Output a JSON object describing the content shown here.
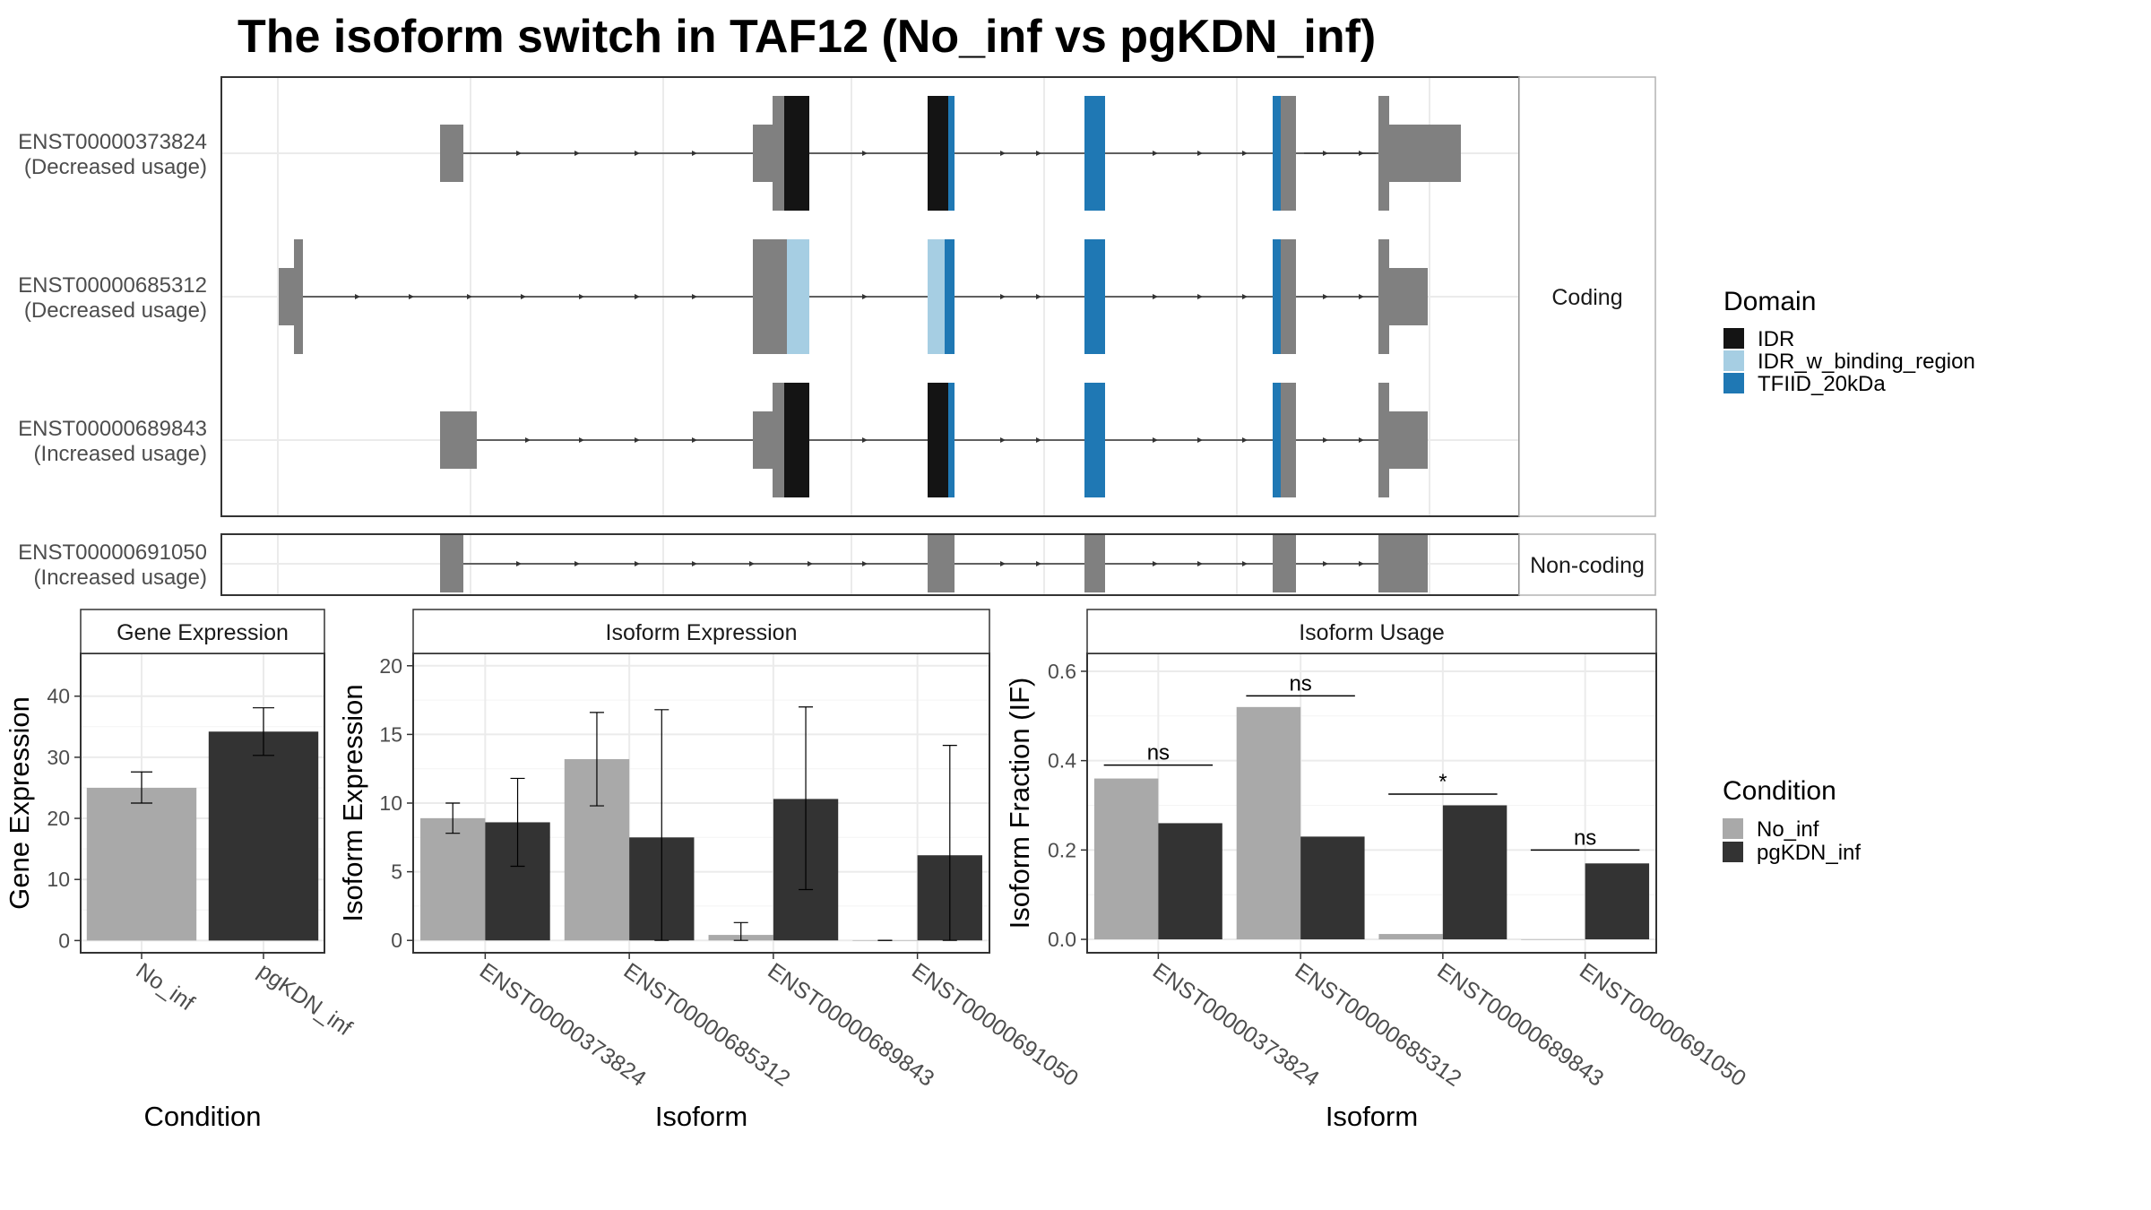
{
  "title": "The isoform switch in TAF12 (No_inf vs pgKDN_inf)",
  "colors": {
    "utr": "#808080",
    "IDR": "#141414",
    "IDR_w_binding_region": "#a6cee3",
    "TFIID_20kDa": "#1f78b4",
    "No_inf": "#a9a9a9",
    "pgKDN_inf": "#333333",
    "grid": "#ebebeb",
    "strip_bg": "#ffffff",
    "panel_border": "#333333"
  },
  "structure": {
    "facets": [
      "Coding",
      "Non-coding"
    ],
    "transcripts": [
      {
        "id": "ENST00000373824",
        "usage": "(Decreased usage)",
        "facet": "Coding"
      },
      {
        "id": "ENST00000685312",
        "usage": "(Decreased usage)",
        "facet": "Coding"
      },
      {
        "id": "ENST00000689843",
        "usage": "(Increased usage)",
        "facet": "Coding"
      },
      {
        "id": "ENST00000691050",
        "usage": "(Increased usage)",
        "facet": "Non-coding"
      }
    ],
    "legend_title": "Domain",
    "legend_items": [
      "IDR",
      "IDR_w_binding_region",
      "TFIID_20kDa"
    ]
  },
  "chart_data": [
    {
      "type": "bar",
      "strip": "Gene Expression",
      "xlabel": "Condition",
      "ylabel": "Gene Expression",
      "categories": [
        "No_inf",
        "pgKDN_inf"
      ],
      "values": [
        25.0,
        34.2
      ],
      "errors": [
        [
          22.5,
          27.6
        ],
        [
          30.3,
          38.1
        ]
      ],
      "yticks": [
        0,
        10,
        20,
        30,
        40
      ],
      "ylim": [
        -2,
        47
      ]
    },
    {
      "type": "bar",
      "strip": "Isoform Expression",
      "xlabel": "Isoform",
      "ylabel": "Isoform Expression",
      "categories": [
        "ENST00000373824",
        "ENST00000685312",
        "ENST00000689843",
        "ENST00000691050"
      ],
      "series": [
        {
          "name": "No_inf",
          "values": [
            8.9,
            13.2,
            0.4,
            0.0
          ],
          "errors": [
            [
              7.8,
              10.0
            ],
            [
              9.8,
              16.6
            ],
            [
              0.0,
              1.3
            ],
            [
              0.0,
              0.0
            ]
          ]
        },
        {
          "name": "pgKDN_inf",
          "values": [
            8.6,
            7.5,
            10.3,
            6.2
          ],
          "errors": [
            [
              5.4,
              11.8
            ],
            [
              0.0,
              16.8
            ],
            [
              3.7,
              17.0
            ],
            [
              0.0,
              14.2
            ]
          ]
        }
      ],
      "yticks": [
        0,
        5,
        10,
        15,
        20
      ],
      "ylim": [
        -0.9,
        20.9
      ]
    },
    {
      "type": "bar",
      "strip": "Isoform Usage",
      "xlabel": "Isoform",
      "ylabel": "Isoform Fraction (IF)",
      "categories": [
        "ENST00000373824",
        "ENST00000685312",
        "ENST00000689843",
        "ENST00000691050"
      ],
      "series": [
        {
          "name": "No_inf",
          "values": [
            0.36,
            0.52,
            0.012,
            0.0
          ]
        },
        {
          "name": "pgKDN_inf",
          "values": [
            0.26,
            0.23,
            0.3,
            0.17
          ]
        }
      ],
      "significance": [
        "ns",
        "ns",
        "*",
        "ns"
      ],
      "sig_y": [
        0.39,
        0.545,
        0.325,
        0.2
      ],
      "yticks": [
        0.0,
        0.2,
        0.4,
        0.6
      ],
      "ylim": [
        -0.03,
        0.64
      ]
    }
  ],
  "condition_legend": {
    "title": "Condition",
    "items": [
      "No_inf",
      "pgKDN_inf"
    ]
  }
}
